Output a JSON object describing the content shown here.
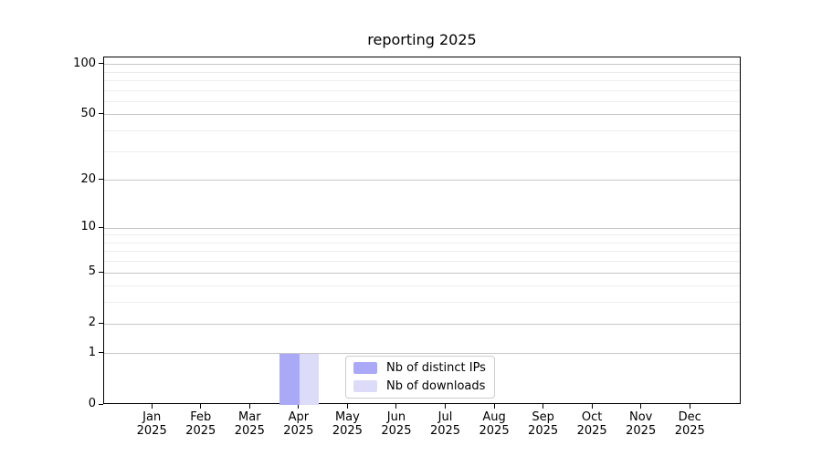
{
  "chart_data": {
    "type": "bar",
    "title": "reporting 2025",
    "x_month_labels": [
      "Jan",
      "Feb",
      "Mar",
      "Apr",
      "May",
      "Jun",
      "Jul",
      "Aug",
      "Sep",
      "Oct",
      "Nov",
      "Dec"
    ],
    "x_year_label": "2025",
    "series": [
      {
        "name": "Nb of distinct IPs",
        "color": "#a9a9f7",
        "values": [
          0,
          0,
          0,
          1,
          0,
          0,
          0,
          0,
          0,
          0,
          0,
          0
        ]
      },
      {
        "name": "Nb of downloads",
        "color": "#dcdcf9",
        "values": [
          0,
          0,
          0,
          1,
          0,
          0,
          0,
          0,
          0,
          0,
          0,
          0
        ]
      }
    ],
    "y_scale": "log10(value+1)",
    "y_major_ticks": [
      0,
      1,
      2,
      5,
      10,
      20,
      50,
      100
    ],
    "y_minor_gridlines": [
      3,
      4,
      6,
      7,
      8,
      9,
      30,
      40,
      60,
      70,
      80,
      90
    ],
    "ylim": [
      0,
      110
    ],
    "grid": "horizontal",
    "legend_position": "lower center"
  },
  "colors": {
    "major_grid": "#c6c6c6",
    "minor_grid": "#ededed",
    "spine": "#000000",
    "text": "#000000"
  }
}
